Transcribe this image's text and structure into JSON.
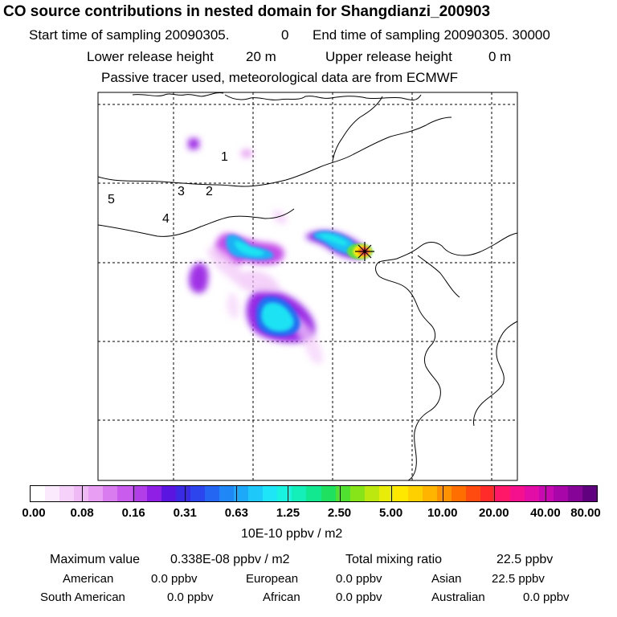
{
  "title": "CO  source contributions in nested domain for Shangdianzi_200903",
  "header": {
    "start_label": "Start time of sampling 20090305.",
    "start_value": "0",
    "end_label": "End time of sampling 20090305. 30000",
    "lower_label": "Lower release height",
    "lower_value": "20 m",
    "upper_label": "Upper release height",
    "upper_value": "0 m",
    "tracer_note": "Passive tracer used, meteorological data are from ECMWF"
  },
  "map": {
    "region_labels": [
      "1",
      "2",
      "3",
      "4",
      "5"
    ]
  },
  "colorbar": {
    "ticks": [
      "0.00",
      "0.08",
      "0.16",
      "0.31",
      "0.63",
      "1.25",
      "2.50",
      "5.00",
      "10.00",
      "20.00",
      "40.00",
      "80.00"
    ],
    "units": "10E-10 ppbv / m2",
    "colors": [
      "#ffffff",
      "#fbeafd",
      "#f6d2fa",
      "#efb9f6",
      "#e79ef3",
      "#d97cef",
      "#c95cec",
      "#b23ee8",
      "#8f1fe4",
      "#5a16e0",
      "#3b2ae4",
      "#2c45ec",
      "#2466f2",
      "#1f88f6",
      "#1ea8f8",
      "#1ec8f9",
      "#1ee6f6",
      "#18f3e0",
      "#14eeb8",
      "#12e890",
      "#20e060",
      "#50e030",
      "#86e418",
      "#bce810",
      "#e8ec08",
      "#ffe800",
      "#ffd000",
      "#ffb400",
      "#ff9200",
      "#ff6e00",
      "#ff4a10",
      "#ff2a2a",
      "#ff1868",
      "#f5108e",
      "#e20ca6",
      "#c808b0",
      "#a806a8",
      "#860498",
      "#600280"
    ]
  },
  "footer": {
    "max_label": "Maximum value",
    "max_value": "0.338E-08 ppbv / m2",
    "total_label": "Total mixing ratio",
    "total_value": "22.5 ppbv",
    "american_label": "American",
    "american_value": "0.0 ppbv",
    "european_label": "European",
    "european_value": "0.0 ppbv",
    "asian_label": "Asian",
    "asian_value": "22.5 ppbv",
    "south_american_label": "South American",
    "south_american_value": "0.0 ppbv",
    "african_label": "African",
    "african_value": "0.0 ppbv",
    "australian_label": "Australian",
    "australian_value": "0.0 ppbv"
  }
}
